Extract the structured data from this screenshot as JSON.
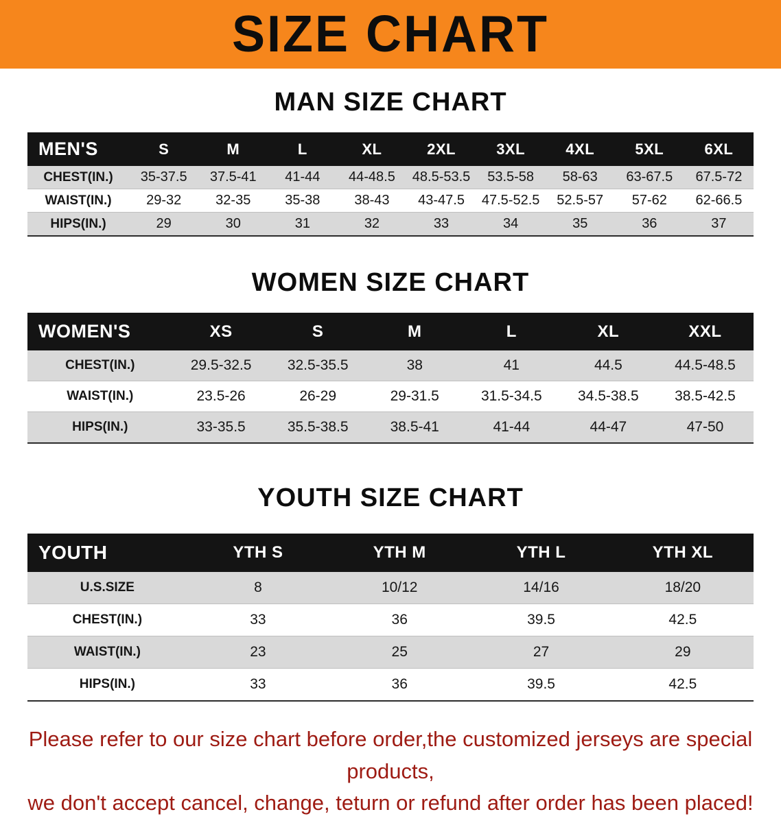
{
  "colors": {
    "banner_bg": "#f6861c",
    "header_bg": "#141414",
    "row_alt": "#d9d9d9",
    "footer_color": "#9e1b13"
  },
  "banner": {
    "title": "SIZE CHART"
  },
  "sections": [
    {
      "id": "men",
      "heading": "MAN SIZE CHART",
      "table": {
        "header": [
          "MEN'S",
          "S",
          "M",
          "L",
          "XL",
          "2XL",
          "3XL",
          "4XL",
          "5XL",
          "6XL"
        ],
        "rows": [
          {
            "label": "CHEST(IN.)",
            "values": [
              "35-37.5",
              "37.5-41",
              "41-44",
              "44-48.5",
              "48.5-53.5",
              "53.5-58",
              "58-63",
              "63-67.5",
              "67.5-72"
            ]
          },
          {
            "label": "WAIST(IN.)",
            "values": [
              "29-32",
              "32-35",
              "35-38",
              "38-43",
              "43-47.5",
              "47.5-52.5",
              "52.5-57",
              "57-62",
              "62-66.5"
            ]
          },
          {
            "label": "HIPS(IN.)",
            "values": [
              "29",
              "30",
              "31",
              "32",
              "33",
              "34",
              "35",
              "36",
              "37"
            ]
          }
        ]
      }
    },
    {
      "id": "women",
      "heading": "WOMEN SIZE CHART",
      "table": {
        "header": [
          "WOMEN'S",
          "XS",
          "S",
          "M",
          "L",
          "XL",
          "XXL"
        ],
        "rows": [
          {
            "label": "CHEST(IN.)",
            "values": [
              "29.5-32.5",
              "32.5-35.5",
              "38",
              "41",
              "44.5",
              "44.5-48.5"
            ]
          },
          {
            "label": "WAIST(IN.)",
            "values": [
              "23.5-26",
              "26-29",
              "29-31.5",
              "31.5-34.5",
              "34.5-38.5",
              "38.5-42.5"
            ]
          },
          {
            "label": "HIPS(IN.)",
            "values": [
              "33-35.5",
              "35.5-38.5",
              "38.5-41",
              "41-44",
              "44-47",
              "47-50"
            ]
          }
        ]
      }
    },
    {
      "id": "youth",
      "heading": "YOUTH SIZE CHART",
      "table": {
        "header": [
          "YOUTH",
          "YTH S",
          "YTH M",
          "YTH L",
          "YTH XL"
        ],
        "rows": [
          {
            "label": "U.S.SIZE",
            "values": [
              "8",
              "10/12",
              "14/16",
              "18/20"
            ]
          },
          {
            "label": "CHEST(IN.)",
            "values": [
              "33",
              "36",
              "39.5",
              "42.5"
            ]
          },
          {
            "label": "WAIST(IN.)",
            "values": [
              "23",
              "25",
              "27",
              "29"
            ]
          },
          {
            "label": "HIPS(IN.)",
            "values": [
              "33",
              "36",
              "39.5",
              "42.5"
            ]
          }
        ]
      }
    }
  ],
  "footer": {
    "line1": "Please refer to our size chart before order,the customized jerseys are special products,",
    "line2": "we don't accept cancel, change, teturn or refund after order has been placed!"
  }
}
